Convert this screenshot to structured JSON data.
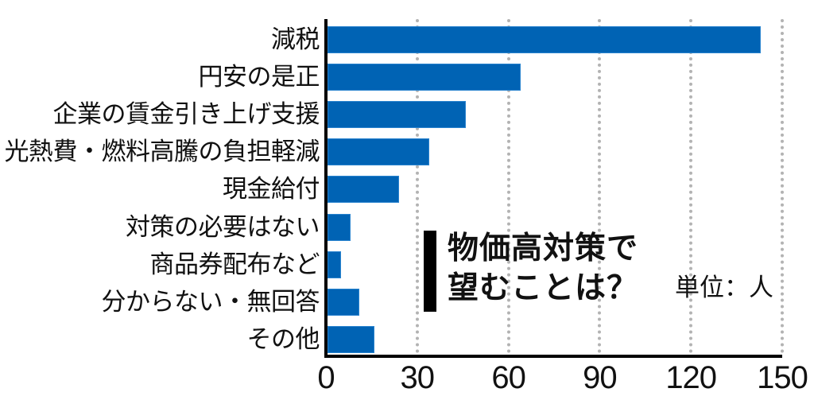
{
  "chart_data": {
    "type": "bar",
    "orientation": "horizontal",
    "title": "物価高対策で望むことは？",
    "title_lines": [
      "物価高対策で",
      "望むことは？"
    ],
    "unit_label": "単位：人",
    "xlabel": "",
    "ylabel": "",
    "xlim": [
      0,
      150
    ],
    "x_ticks": [
      "0",
      "30",
      "60",
      "90",
      "120",
      "150"
    ],
    "grid": "vertical dotted at each tick",
    "bar_color": "#0063b4",
    "categories": [
      "減税",
      "円安の是正",
      "企業の賃金引き上げ支援",
      "光熱費・燃料高騰の負担軽減",
      "現金給付",
      "対策の必要はない",
      "商品券配布など",
      "分からない・無回答",
      "その他"
    ],
    "values": [
      143,
      64,
      46,
      34,
      24,
      8,
      5,
      11,
      16
    ]
  }
}
